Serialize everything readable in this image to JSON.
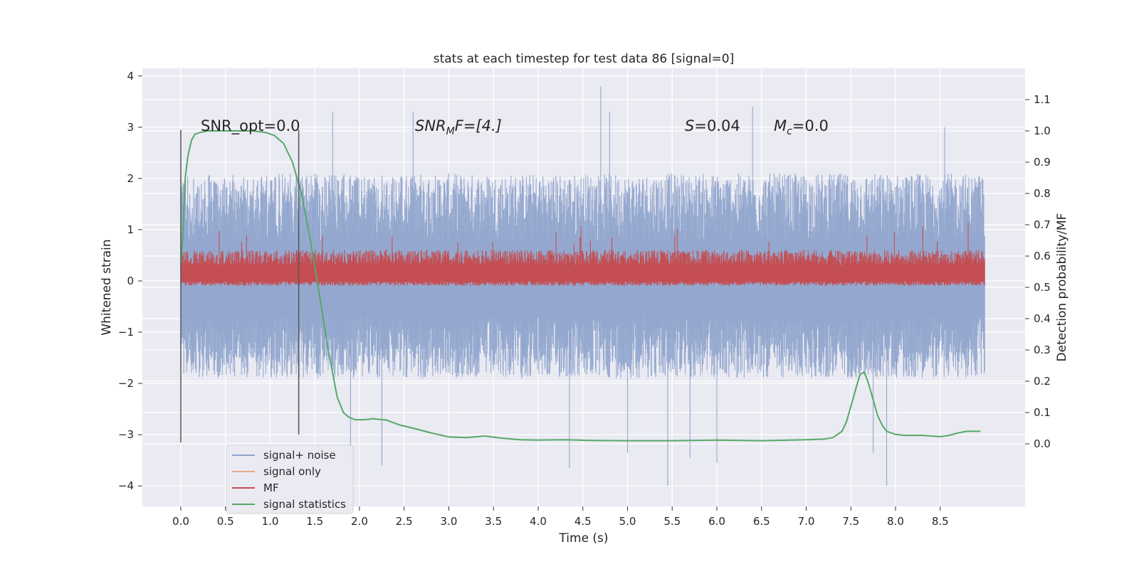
{
  "chart_data": {
    "type": "line",
    "title": "stats at each timestep for test data 86 [signal=0]",
    "xlabel": "Time (s)",
    "ylabel": "Whitened strain",
    "ylabel_right": "Detection probability/MF",
    "xlim": [
      -0.43,
      9.45
    ],
    "ylim": [
      -4.4,
      4.15
    ],
    "ylim_right": [
      -0.2,
      1.2
    ],
    "x_ticks": [
      0.0,
      0.5,
      1.0,
      1.5,
      2.0,
      2.5,
      3.0,
      3.5,
      4.0,
      4.5,
      5.0,
      5.5,
      6.0,
      6.5,
      7.0,
      7.5,
      8.0,
      8.5
    ],
    "x_tick_labels": [
      "0.0",
      "0.5",
      "1.0",
      "1.5",
      "2.0",
      "2.5",
      "3.0",
      "3.5",
      "4.0",
      "4.5",
      "5.0",
      "5.5",
      "6.0",
      "6.5",
      "7.0",
      "7.5",
      "8.0",
      "8.5"
    ],
    "y_ticks": [
      -4,
      -3,
      -2,
      -1,
      0,
      1,
      2,
      3,
      4
    ],
    "y_tick_labels": [
      "−4",
      "−3",
      "−2",
      "−1",
      "0",
      "1",
      "2",
      "3",
      "4"
    ],
    "y_right_ticks": [
      0.0,
      0.1,
      0.2,
      0.3,
      0.4,
      0.5,
      0.6,
      0.7,
      0.8,
      0.9,
      1.0,
      1.1
    ],
    "y_right_tick_labels": [
      "0.0",
      "0.1",
      "0.2",
      "0.3",
      "0.4",
      "0.5",
      "0.6",
      "0.7",
      "0.8",
      "0.9",
      "1.0",
      "1.1"
    ],
    "grid": true,
    "legend_position": "lower-left",
    "annotations": {
      "snr_opt": "SNR_opt=0.0",
      "snr_mf_main": "SNR",
      "snr_mf_sub": "M",
      "snr_mf_rest": "F=[4.]",
      "s_var": "S",
      "s_rest": "=0.04",
      "mc_var": "M",
      "mc_sub": "c",
      "mc_rest": "=0.0"
    },
    "vertical_markers": [
      {
        "x": 0.0,
        "y_range": [
          -3.15,
          2.95
        ]
      },
      {
        "x": 1.32,
        "y_range": [
          -3.0,
          2.95
        ]
      }
    ],
    "series": [
      {
        "name": "signal+ noise",
        "color": "#8fa4cc",
        "axis": "left",
        "x_range": [
          0.0,
          9.0
        ],
        "amplitude_typical": [
          -1.9,
          2.1
        ],
        "peaks": [
          {
            "x": 4.7,
            "y": 3.8
          },
          {
            "x": 5.45,
            "y": -4.0
          },
          {
            "x": 7.9,
            "y": -4.0
          },
          {
            "x": 4.35,
            "y": -3.65
          },
          {
            "x": 2.25,
            "y": -3.6
          },
          {
            "x": 1.7,
            "y": 3.3
          },
          {
            "x": 2.6,
            "y": 3.3
          },
          {
            "x": 4.8,
            "y": 3.3
          },
          {
            "x": 6.4,
            "y": 3.4
          },
          {
            "x": 8.55,
            "y": 3.0
          },
          {
            "x": 5.0,
            "y": -3.35
          },
          {
            "x": 5.7,
            "y": -3.45
          },
          {
            "x": 6.0,
            "y": -3.55
          },
          {
            "x": 7.75,
            "y": -3.35
          },
          {
            "x": 1.9,
            "y": -3.5
          }
        ]
      },
      {
        "name": "signal only",
        "color": "#e8a889",
        "axis": "left",
        "values": []
      },
      {
        "name": "MF",
        "color": "#c44e52",
        "axis": "right",
        "x_range": [
          0.0,
          9.0
        ],
        "band": [
          0.52,
          0.62
        ],
        "spike_max": 0.71
      },
      {
        "name": "signal statistics",
        "color": "#55a868",
        "axis": "right",
        "x": [
          0.0,
          0.02,
          0.05,
          0.08,
          0.12,
          0.16,
          0.22,
          0.3,
          0.5,
          0.8,
          0.95,
          1.05,
          1.15,
          1.25,
          1.35,
          1.45,
          1.55,
          1.65,
          1.75,
          1.82,
          1.88,
          1.95,
          2.05,
          2.15,
          2.3,
          2.45,
          2.6,
          2.8,
          3.0,
          3.2,
          3.4,
          3.6,
          3.8,
          4.0,
          4.3,
          4.6,
          5.0,
          5.5,
          6.0,
          6.5,
          7.0,
          7.2,
          7.3,
          7.4,
          7.45,
          7.5,
          7.55,
          7.6,
          7.65,
          7.7,
          7.75,
          7.8,
          7.85,
          7.9,
          8.0,
          8.1,
          8.3,
          8.5,
          8.6,
          8.7,
          8.8,
          8.95
        ],
        "values": [
          0.57,
          0.65,
          0.85,
          0.92,
          0.97,
          0.99,
          0.995,
          1.0,
          1.0,
          1.0,
          0.995,
          0.985,
          0.96,
          0.9,
          0.8,
          0.65,
          0.48,
          0.3,
          0.15,
          0.1,
          0.085,
          0.077,
          0.077,
          0.08,
          0.076,
          0.06,
          0.05,
          0.035,
          0.022,
          0.02,
          0.025,
          0.018,
          0.013,
          0.012,
          0.013,
          0.011,
          0.01,
          0.01,
          0.012,
          0.01,
          0.013,
          0.015,
          0.02,
          0.04,
          0.07,
          0.12,
          0.17,
          0.22,
          0.23,
          0.19,
          0.14,
          0.09,
          0.06,
          0.04,
          0.03,
          0.027,
          0.027,
          0.023,
          0.027,
          0.035,
          0.04,
          0.04
        ]
      }
    ]
  }
}
